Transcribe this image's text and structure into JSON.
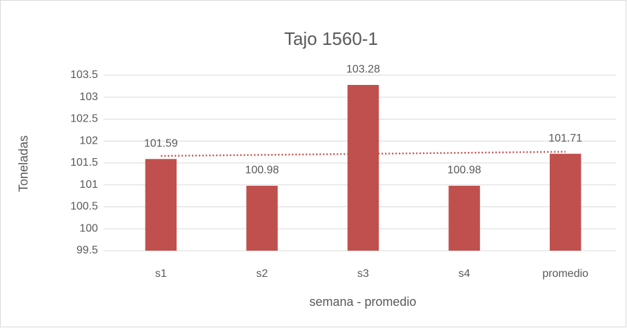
{
  "chart_data": {
    "type": "bar",
    "title": "Tajo 1560-1",
    "x_label": "semana - promedio",
    "y_label": "Toneladas",
    "categories": [
      "s1",
      "s2",
      "s3",
      "s4",
      "promedio"
    ],
    "values": [
      101.59,
      100.98,
      103.28,
      100.98,
      101.71
    ],
    "color": "#c0504d",
    "ylim": [
      99.5,
      103.5
    ],
    "yticks": [
      99.5,
      100,
      100.5,
      101,
      101.5,
      102,
      102.5,
      103,
      103.5
    ],
    "grid": true,
    "data_labels": true,
    "trendline": "linear",
    "trendline_color": "#c0504d"
  }
}
